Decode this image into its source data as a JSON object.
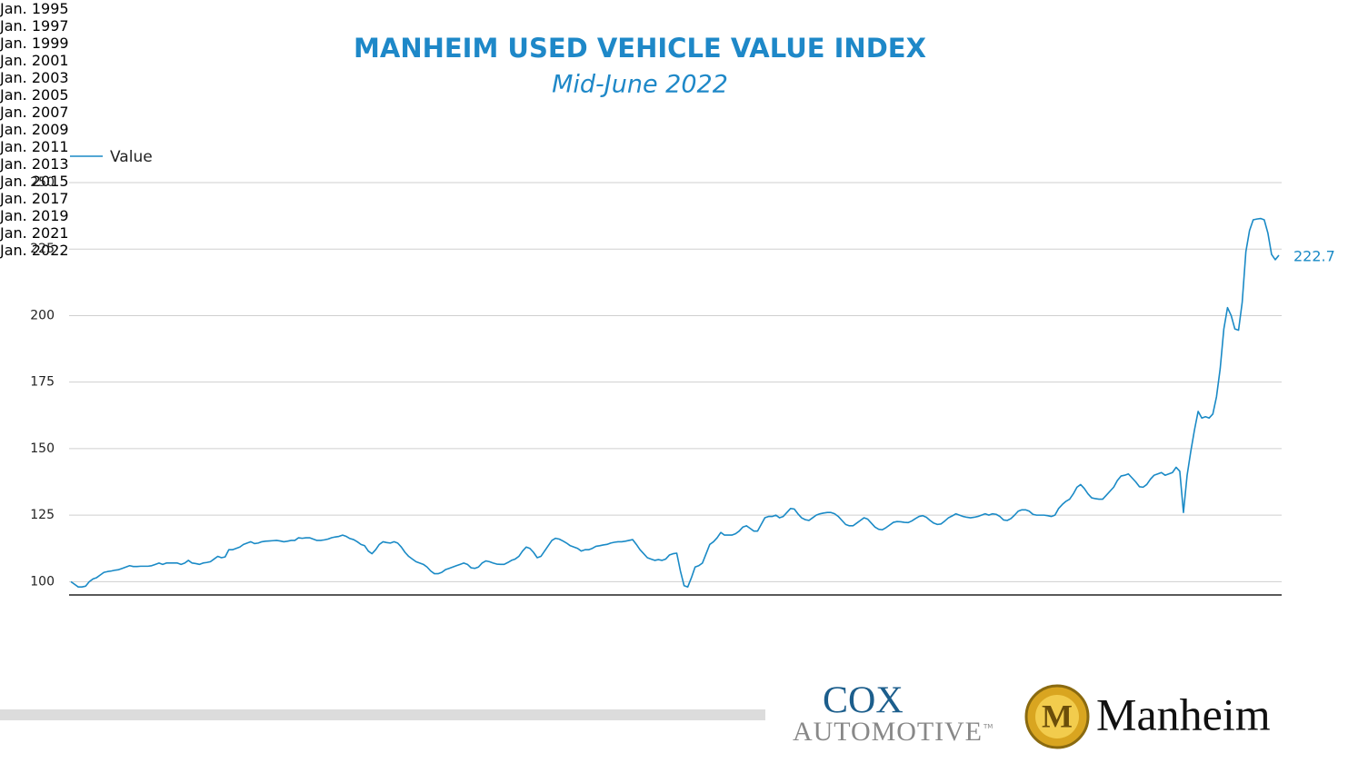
{
  "chart_data": {
    "type": "line",
    "title": "MANHEIM USED VEHICLE VALUE INDEX",
    "subtitle": "Mid-June 2022",
    "x": [
      "1995-01",
      "1995-02",
      "1995-03",
      "1995-04",
      "1995-05",
      "1995-06",
      "1995-07",
      "1995-08",
      "1995-09",
      "1995-10",
      "1995-11",
      "1995-12",
      "1996-01",
      "1996-02",
      "1996-03",
      "1996-04",
      "1996-05",
      "1996-06",
      "1996-07",
      "1996-08",
      "1996-09",
      "1996-10",
      "1996-11",
      "1996-12",
      "1997-01",
      "1997-02",
      "1997-03",
      "1997-04",
      "1997-05",
      "1997-06",
      "1997-07",
      "1997-08",
      "1997-09",
      "1997-10",
      "1997-11",
      "1997-12",
      "1998-01",
      "1998-02",
      "1998-03",
      "1998-04",
      "1998-05",
      "1998-06",
      "1998-07",
      "1998-08",
      "1998-09",
      "1998-10",
      "1998-11",
      "1998-12",
      "1999-01",
      "1999-02",
      "1999-03",
      "1999-04",
      "1999-05",
      "1999-06",
      "1999-07",
      "1999-08",
      "1999-09",
      "1999-10",
      "1999-11",
      "1999-12",
      "2000-01",
      "2000-02",
      "2000-03",
      "2000-04",
      "2000-05",
      "2000-06",
      "2000-07",
      "2000-08",
      "2000-09",
      "2000-10",
      "2000-11",
      "2000-12",
      "2001-01",
      "2001-02",
      "2001-03",
      "2001-04",
      "2001-05",
      "2001-06",
      "2001-07",
      "2001-08",
      "2001-09",
      "2001-10",
      "2001-11",
      "2001-12",
      "2002-01",
      "2002-02",
      "2002-03",
      "2002-04",
      "2002-05",
      "2002-06",
      "2002-07",
      "2002-08",
      "2002-09",
      "2002-10",
      "2002-11",
      "2002-12",
      "2003-01",
      "2003-02",
      "2003-03",
      "2003-04",
      "2003-05",
      "2003-06",
      "2003-07",
      "2003-08",
      "2003-09",
      "2003-10",
      "2003-11",
      "2003-12",
      "2004-01",
      "2004-02",
      "2004-03",
      "2004-04",
      "2004-05",
      "2004-06",
      "2004-07",
      "2004-08",
      "2004-09",
      "2004-10",
      "2004-11",
      "2004-12",
      "2005-01",
      "2005-02",
      "2005-03",
      "2005-04",
      "2005-05",
      "2005-06",
      "2005-07",
      "2005-08",
      "2005-09",
      "2005-10",
      "2005-11",
      "2005-12",
      "2006-01",
      "2006-02",
      "2006-03",
      "2006-04",
      "2006-05",
      "2006-06",
      "2006-07",
      "2006-08",
      "2006-09",
      "2006-10",
      "2006-11",
      "2006-12",
      "2007-01",
      "2007-02",
      "2007-03",
      "2007-04",
      "2007-05",
      "2007-06",
      "2007-07",
      "2007-08",
      "2007-09",
      "2007-10",
      "2007-11",
      "2007-12",
      "2008-01",
      "2008-02",
      "2008-03",
      "2008-04",
      "2008-05",
      "2008-06",
      "2008-07",
      "2008-08",
      "2008-09",
      "2008-10",
      "2008-11",
      "2008-12",
      "2009-01",
      "2009-02",
      "2009-03",
      "2009-04",
      "2009-05",
      "2009-06",
      "2009-07",
      "2009-08",
      "2009-09",
      "2009-10",
      "2009-11",
      "2009-12",
      "2010-01",
      "2010-02",
      "2010-03",
      "2010-04",
      "2010-05",
      "2010-06",
      "2010-07",
      "2010-08",
      "2010-09",
      "2010-10",
      "2010-11",
      "2010-12",
      "2011-01",
      "2011-02",
      "2011-03",
      "2011-04",
      "2011-05",
      "2011-06",
      "2011-07",
      "2011-08",
      "2011-09",
      "2011-10",
      "2011-11",
      "2011-12",
      "2012-01",
      "2012-02",
      "2012-03",
      "2012-04",
      "2012-05",
      "2012-06",
      "2012-07",
      "2012-08",
      "2012-09",
      "2012-10",
      "2012-11",
      "2012-12",
      "2013-01",
      "2013-02",
      "2013-03",
      "2013-04",
      "2013-05",
      "2013-06",
      "2013-07",
      "2013-08",
      "2013-09",
      "2013-10",
      "2013-11",
      "2013-12",
      "2014-01",
      "2014-02",
      "2014-03",
      "2014-04",
      "2014-05",
      "2014-06",
      "2014-07",
      "2014-08",
      "2014-09",
      "2014-10",
      "2014-11",
      "2014-12",
      "2015-01",
      "2015-02",
      "2015-03",
      "2015-04",
      "2015-05",
      "2015-06",
      "2015-07",
      "2015-08",
      "2015-09",
      "2015-10",
      "2015-11",
      "2015-12",
      "2016-01",
      "2016-02",
      "2016-03",
      "2016-04",
      "2016-05",
      "2016-06",
      "2016-07",
      "2016-08",
      "2016-09",
      "2016-10",
      "2016-11",
      "2016-12",
      "2017-01",
      "2017-02",
      "2017-03",
      "2017-04",
      "2017-05",
      "2017-06",
      "2017-07",
      "2017-08",
      "2017-09",
      "2017-10",
      "2017-11",
      "2017-12",
      "2018-01",
      "2018-02",
      "2018-03",
      "2018-04",
      "2018-05",
      "2018-06",
      "2018-07",
      "2018-08",
      "2018-09",
      "2018-10",
      "2018-11",
      "2018-12",
      "2019-01",
      "2019-02",
      "2019-03",
      "2019-04",
      "2019-05",
      "2019-06",
      "2019-07",
      "2019-08",
      "2019-09",
      "2019-10",
      "2019-11",
      "2019-12",
      "2020-01",
      "2020-02",
      "2020-03",
      "2020-04",
      "2020-05",
      "2020-06",
      "2020-07",
      "2020-08",
      "2020-09",
      "2020-10",
      "2020-11",
      "2020-12",
      "2021-01",
      "2021-02",
      "2021-03",
      "2021-04",
      "2021-05",
      "2021-06",
      "2021-07",
      "2021-08",
      "2021-09",
      "2021-10",
      "2021-11",
      "2021-12",
      "2022-01",
      "2022-02",
      "2022-03",
      "2022-04",
      "2022-05",
      "2022-06"
    ],
    "series": [
      {
        "name": "Value",
        "color": "#1a8ac6",
        "values": [
          100,
          99,
          98,
          98,
          98.3,
          100,
          101,
          101.5,
          102.5,
          103.5,
          103.8,
          104,
          104.3,
          104.5,
          105,
          105.5,
          106,
          105.7,
          105.7,
          105.8,
          105.8,
          105.8,
          106,
          106.5,
          107,
          106.5,
          107,
          107,
          107,
          107,
          106.5,
          107,
          108,
          107,
          106.8,
          106.5,
          107,
          107.2,
          107.5,
          108.5,
          109.5,
          109,
          109.3,
          112,
          112,
          112.5,
          113,
          114,
          114.5,
          115,
          114.3,
          114.5,
          115,
          115.2,
          115.3,
          115.4,
          115.5,
          115.3,
          115,
          115.2,
          115.5,
          115.5,
          116.5,
          116.3,
          116.5,
          116.5,
          116,
          115.5,
          115.5,
          115.7,
          116,
          116.5,
          116.8,
          117,
          117.5,
          117,
          116.2,
          115.8,
          115,
          114,
          113.5,
          111.5,
          110.5,
          112,
          114,
          115,
          114.7,
          114.5,
          115,
          114.5,
          113,
          111,
          109.5,
          108.5,
          107.5,
          107,
          106.5,
          105.5,
          104,
          103,
          103,
          103.5,
          104.5,
          105,
          105.5,
          106,
          106.5,
          107,
          106.5,
          105.2,
          105,
          105.5,
          107,
          107.8,
          107.5,
          107,
          106.6,
          106.5,
          106.5,
          107.2,
          108,
          108.5,
          109.5,
          111.5,
          113,
          112.5,
          111,
          109,
          109.5,
          111.5,
          113.5,
          115.5,
          116.3,
          116,
          115.3,
          114.5,
          113.5,
          113,
          112.5,
          111.5,
          112,
          112,
          112.5,
          113.3,
          113.5,
          113.8,
          114,
          114.5,
          114.8,
          115,
          115,
          115.2,
          115.5,
          115.8,
          114,
          112,
          110.5,
          109,
          108.5,
          108,
          108.3,
          108,
          108.5,
          110,
          110.5,
          110.7,
          104,
          98.5,
          98,
          101.5,
          105.5,
          106,
          107,
          110.5,
          114,
          115,
          116.5,
          118.5,
          117.5,
          117.5,
          117.5,
          118,
          119,
          120.5,
          121,
          120,
          119,
          119,
          121.5,
          124,
          124.5,
          124.5,
          125,
          124,
          124.5,
          126,
          127.5,
          127.3,
          125.5,
          124,
          123.3,
          123,
          124,
          125,
          125.5,
          125.8,
          126,
          126,
          125.5,
          124.5,
          123,
          121.5,
          121,
          121,
          122,
          123,
          124,
          123.5,
          122,
          120.5,
          119.7,
          119.5,
          120.3,
          121.3,
          122.3,
          122.6,
          122.5,
          122.3,
          122.2,
          122.8,
          123.7,
          124.5,
          124.8,
          124.2,
          123,
          122,
          121.5,
          121.7,
          122.8,
          124,
          124.7,
          125.5,
          125,
          124.5,
          124.2,
          124,
          124.2,
          124.5,
          125,
          125.5,
          125,
          125.5,
          125.3,
          124.5,
          123.2,
          123,
          123.7,
          125,
          126.5,
          127,
          127,
          126.5,
          125.3,
          125,
          125,
          125,
          124.8,
          124.5,
          125,
          127.5,
          129,
          130.2,
          131,
          133,
          135.5,
          136.5,
          135,
          133,
          131.5,
          131.2,
          131,
          131,
          132.5,
          134,
          135.5,
          138,
          139.7,
          140,
          140.5,
          139,
          137.5,
          135.7,
          135.5,
          136.5,
          138.5,
          140,
          140.5,
          141,
          140,
          140.5,
          141,
          143,
          141.5,
          126,
          140,
          149,
          157,
          164,
          161.5,
          162,
          161.5,
          163,
          169.5,
          180,
          195,
          203,
          200,
          195,
          194.5,
          205,
          224,
          232,
          236,
          236.3,
          236.5,
          236,
          231,
          223,
          221,
          222.7
        ]
      }
    ],
    "xlim": [
      "1995-01",
      "2022-06"
    ],
    "xticks": [
      {
        "value": "1995-01",
        "label": "Jan.\n1995"
      },
      {
        "value": "1997-01",
        "label": "Jan.\n1997"
      },
      {
        "value": "1999-01",
        "label": "Jan.\n1999"
      },
      {
        "value": "2001-01",
        "label": "Jan.\n2001"
      },
      {
        "value": "2003-01",
        "label": "Jan.\n2003"
      },
      {
        "value": "2005-01",
        "label": "Jan.\n2005"
      },
      {
        "value": "2007-01",
        "label": "Jan.\n2007"
      },
      {
        "value": "2009-01",
        "label": "Jan.\n2009"
      },
      {
        "value": "2011-01",
        "label": "Jan.\n2011"
      },
      {
        "value": "2013-01",
        "label": "Jan.\n2013"
      },
      {
        "value": "2015-01",
        "label": "Jan.\n2015"
      },
      {
        "value": "2017-01",
        "label": "Jan.\n2017"
      },
      {
        "value": "2019-01",
        "label": "Jan.\n2019"
      },
      {
        "value": "2021-01",
        "label": "Jan.\n2021"
      },
      {
        "value": "2022-01",
        "label": "Jan.\n2022"
      }
    ],
    "ylim": [
      95,
      250
    ],
    "yticks": [
      100,
      125,
      150,
      175,
      200,
      225,
      250
    ],
    "grid": true,
    "legend": "top-left"
  },
  "footer": {
    "cox": "COX",
    "automotive": "AUTOMOTIVE",
    "tm": "TM",
    "emblem": "M",
    "manheim": "Manheim"
  }
}
